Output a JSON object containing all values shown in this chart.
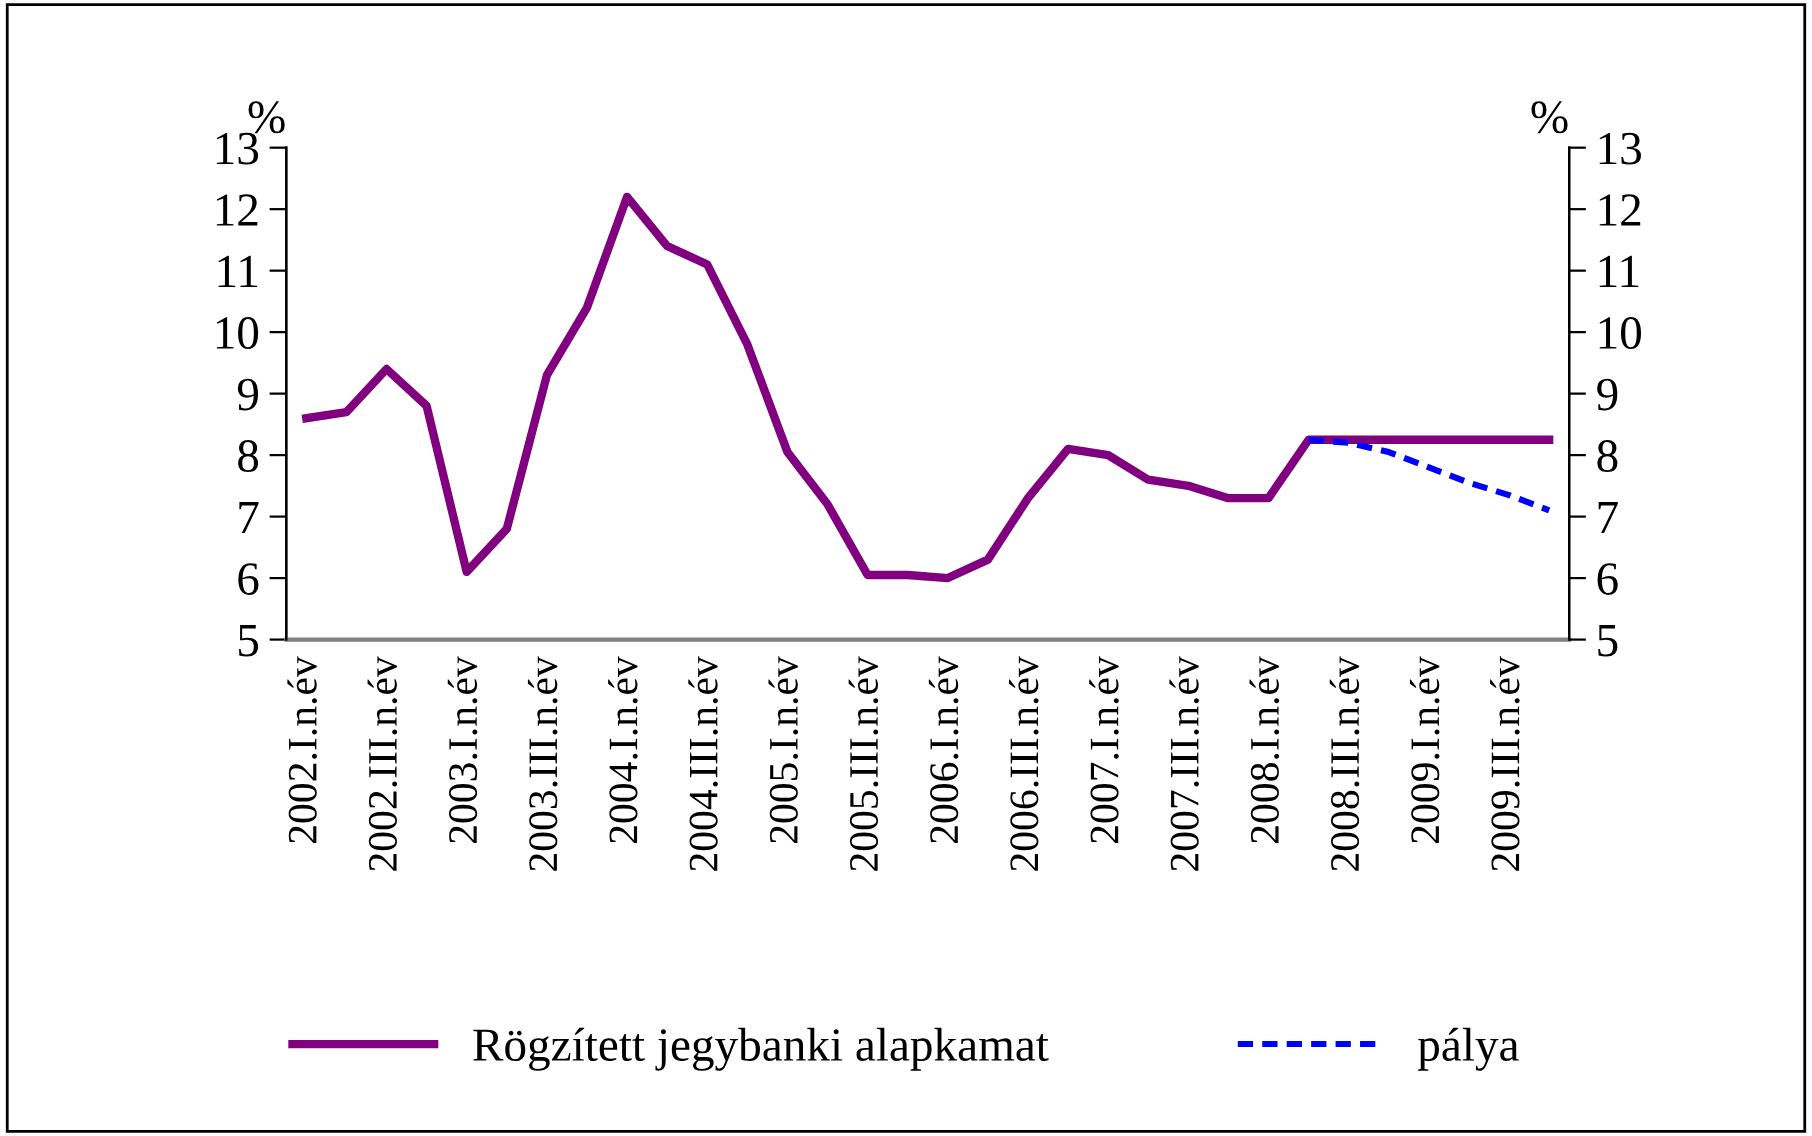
{
  "chart_data": {
    "type": "line",
    "ylabel": "%",
    "y2label": "%",
    "categories": [
      "2002.I.n.év",
      null,
      "2002.III.n.év",
      null,
      "2003.I.n.év",
      null,
      "2003.III.n.év",
      null,
      "2004.I.n.év",
      null,
      "2004.III.n.év",
      null,
      "2005.I.n.év",
      null,
      "2005.III.n.év",
      null,
      "2006.I.n.év",
      null,
      "2006.III.n.év",
      null,
      "2007.I.n.év",
      null,
      "2007.III.n.év",
      null,
      "2008.I.n.év",
      null,
      "2008.III.n.év",
      null,
      "2009.I.n.év",
      null,
      "2009.III.n.év",
      null
    ],
    "series": [
      {
        "name": "Rögzített jegybanki alapkamat",
        "color": "#800080",
        "line_style": "solid",
        "values": [
          8.6,
          8.7,
          9.4,
          8.8,
          6.1,
          6.8,
          9.3,
          10.4,
          12.2,
          11.4,
          11.1,
          9.8,
          8.05,
          7.2,
          6.05,
          6.05,
          6.0,
          6.3,
          7.3,
          8.1,
          8.0,
          7.6,
          7.5,
          7.3,
          7.3,
          8.25,
          8.25,
          8.25,
          8.25,
          8.25,
          8.25,
          8.25
        ]
      },
      {
        "name": "pálya",
        "color": "#0000ff",
        "line_style": "dashed",
        "values": [
          null,
          null,
          null,
          null,
          null,
          null,
          null,
          null,
          null,
          null,
          null,
          null,
          null,
          null,
          null,
          null,
          null,
          null,
          null,
          null,
          null,
          null,
          null,
          null,
          null,
          8.25,
          8.2,
          8.05,
          7.8,
          7.55,
          7.35,
          7.1
        ]
      }
    ],
    "ylim": [
      5,
      13
    ],
    "yticks": [
      5,
      6,
      7,
      8,
      9,
      10,
      11,
      12,
      13
    ],
    "y2lim": [
      5,
      13
    ],
    "y2ticks": [
      5,
      6,
      7,
      8,
      9,
      10,
      11,
      12,
      13
    ],
    "grid": false,
    "legend": "bottom",
    "marker": "none"
  }
}
